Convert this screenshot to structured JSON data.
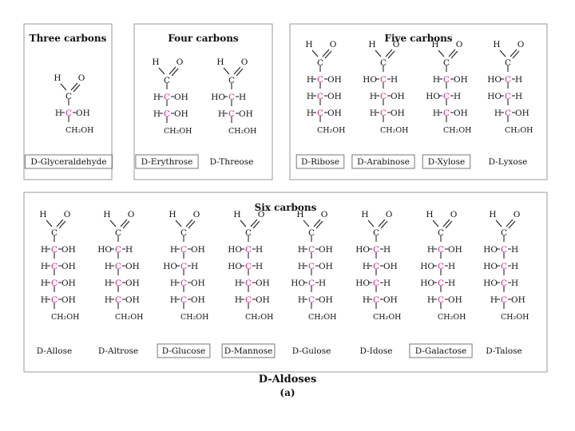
{
  "groups": [
    {
      "title": "Three carbons",
      "molecules": [
        {
          "name": "D-Glyceraldehyde",
          "boxed": true,
          "rows": [
            {
              "left": "H",
              "right": "OH"
            }
          ]
        }
      ]
    },
    {
      "title": "Four carbons",
      "molecules": [
        {
          "name": "D-Erythrose",
          "boxed": true,
          "rows": [
            {
              "left": "H",
              "right": "OH"
            },
            {
              "left": "H",
              "right": "OH"
            }
          ]
        },
        {
          "name": "D-Threose",
          "boxed": false,
          "rows": [
            {
              "left": "HO",
              "right": "H"
            },
            {
              "left": "H",
              "right": "OH"
            }
          ]
        }
      ]
    },
    {
      "title": "Five carbons",
      "molecules": [
        {
          "name": "D-Ribose",
          "boxed": true,
          "rows": [
            {
              "left": "H",
              "right": "OH"
            },
            {
              "left": "H",
              "right": "OH"
            },
            {
              "left": "H",
              "right": "OH"
            }
          ]
        },
        {
          "name": "D-Arabinose",
          "boxed": true,
          "rows": [
            {
              "left": "HO",
              "right": "H"
            },
            {
              "left": "H",
              "right": "OH"
            },
            {
              "left": "H",
              "right": "OH"
            }
          ]
        },
        {
          "name": "D-Xylose",
          "boxed": true,
          "rows": [
            {
              "left": "H",
              "right": "OH"
            },
            {
              "left": "HO",
              "right": "H"
            },
            {
              "left": "H",
              "right": "OH"
            }
          ]
        },
        {
          "name": "D-Lyxose",
          "boxed": false,
          "rows": [
            {
              "left": "HO",
              "right": "H"
            },
            {
              "left": "HO",
              "right": "H"
            },
            {
              "left": "H",
              "right": "OH"
            }
          ]
        }
      ]
    },
    {
      "title": "Six carbons",
      "molecules": [
        {
          "name": "D-Allose",
          "boxed": false,
          "rows": [
            {
              "left": "H",
              "right": "OH"
            },
            {
              "left": "H",
              "right": "OH"
            },
            {
              "left": "H",
              "right": "OH"
            },
            {
              "left": "H",
              "right": "OH"
            }
          ]
        },
        {
          "name": "D-Altrose",
          "boxed": false,
          "rows": [
            {
              "left": "HO",
              "right": "H"
            },
            {
              "left": "H",
              "right": "OH"
            },
            {
              "left": "H",
              "right": "OH"
            },
            {
              "left": "H",
              "right": "OH"
            }
          ]
        },
        {
          "name": "D-Glucose",
          "boxed": true,
          "rows": [
            {
              "left": "H",
              "right": "OH"
            },
            {
              "left": "HO",
              "right": "H"
            },
            {
              "left": "H",
              "right": "OH"
            },
            {
              "left": "H",
              "right": "OH"
            }
          ]
        },
        {
          "name": "D-Mannose",
          "boxed": true,
          "rows": [
            {
              "left": "HO",
              "right": "H"
            },
            {
              "left": "HO",
              "right": "H"
            },
            {
              "left": "H",
              "right": "OH"
            },
            {
              "left": "H",
              "right": "OH"
            }
          ]
        },
        {
          "name": "D-Gulose",
          "boxed": false,
          "rows": [
            {
              "left": "H",
              "right": "OH"
            },
            {
              "left": "H",
              "right": "OH"
            },
            {
              "left": "HO",
              "right": "H"
            },
            {
              "left": "H",
              "right": "OH"
            }
          ]
        },
        {
          "name": "D-Idose",
          "boxed": false,
          "rows": [
            {
              "left": "HO",
              "right": "H"
            },
            {
              "left": "H",
              "right": "OH"
            },
            {
              "left": "HO",
              "right": "H"
            },
            {
              "left": "H",
              "right": "OH"
            }
          ]
        },
        {
          "name": "D-Galactose",
          "boxed": true,
          "rows": [
            {
              "left": "H",
              "right": "OH"
            },
            {
              "left": "HO",
              "right": "H"
            },
            {
              "left": "HO",
              "right": "H"
            },
            {
              "left": "H",
              "right": "OH"
            }
          ]
        },
        {
          "name": "D-Talose",
          "boxed": false,
          "rows": [
            {
              "left": "HO",
              "right": "H"
            },
            {
              "left": "HO",
              "right": "H"
            },
            {
              "left": "HO",
              "right": "H"
            },
            {
              "left": "H",
              "right": "OH"
            }
          ]
        }
      ]
    }
  ],
  "atoms": {
    "aldehyde_h": "H",
    "aldehyde_o": "O",
    "carbon": "C",
    "terminal": "CH₂OH"
  },
  "colors": {
    "chiral_carbon": "#d0208a",
    "text": "#111111",
    "panel_border": "#9a9a9a",
    "box_border": "#777777"
  },
  "caption": {
    "main": "D-Aldoses",
    "sub": "(a)"
  }
}
